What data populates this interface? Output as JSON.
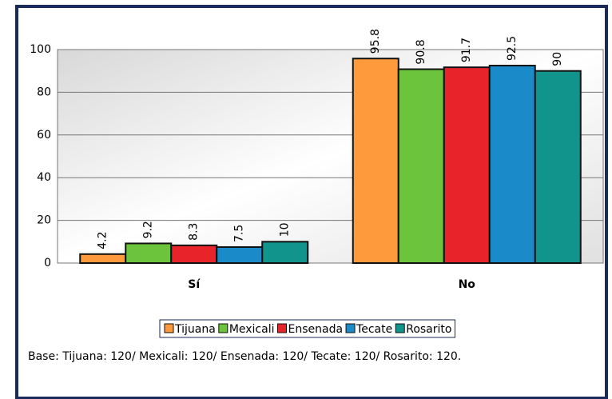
{
  "chart_data": {
    "type": "bar",
    "categories": [
      "Sí",
      "No"
    ],
    "series": [
      {
        "name": "Tijuana",
        "color": "#ff9a3c",
        "values": [
          4.2,
          95.8
        ]
      },
      {
        "name": "Mexicali",
        "color": "#6cc43c",
        "values": [
          9.2,
          90.8
        ]
      },
      {
        "name": "Ensenada",
        "color": "#e8242a",
        "values": [
          8.3,
          91.7
        ]
      },
      {
        "name": "Tecate",
        "color": "#1a8ac8",
        "values": [
          7.5,
          92.5
        ]
      },
      {
        "name": "Rosarito",
        "color": "#10948c",
        "values": [
          10,
          90
        ]
      }
    ],
    "ylim": [
      0,
      100
    ],
    "yticks": [
      0,
      20,
      40,
      60,
      80,
      100
    ],
    "grid": true,
    "legend": "bottom",
    "note": "Base: Tijuana: 120/ Mexicali: 120/ Ensenada: 120/ Tecate: 120/ Rosarito: 120."
  }
}
